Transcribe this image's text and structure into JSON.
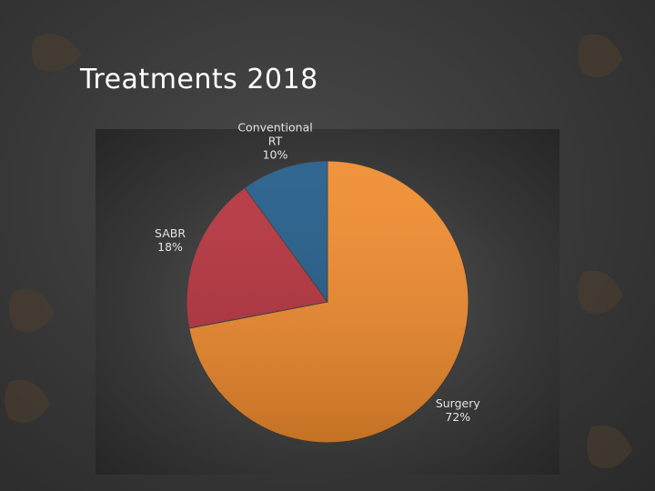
{
  "chart_data": {
    "type": "pie",
    "title": "Treatments 2018",
    "categories": [
      "Surgery",
      "SABR",
      "Conventional RT"
    ],
    "values": [
      72,
      18,
      10
    ],
    "value_labels": [
      "72%",
      "18%",
      "10%"
    ],
    "colors": [
      "#f08a2c",
      "#b5303c",
      "#1f5a88"
    ]
  }
}
